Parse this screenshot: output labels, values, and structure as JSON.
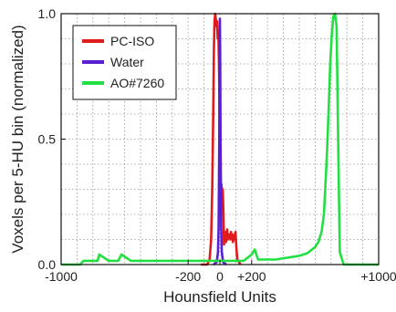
{
  "chart_data": {
    "type": "line",
    "xlabel": "Hounsfield Units",
    "ylabel": "Voxels per 5-HU bin (normalized)",
    "xlim": [
      -1000,
      1000
    ],
    "ylim": [
      0,
      1.0
    ],
    "grid": true,
    "legend_position": "top-left",
    "x_ticks": [
      {
        "value": -1000,
        "label": "-1000"
      },
      {
        "value": -200,
        "label": "-200"
      },
      {
        "value": 0,
        "label": "0"
      },
      {
        "value": 200,
        "label": "+200"
      },
      {
        "value": 1000,
        "label": "+1000"
      }
    ],
    "y_ticks": [
      {
        "value": 0,
        "label": "0.0"
      },
      {
        "value": 0.5,
        "label": "0.5"
      },
      {
        "value": 1.0,
        "label": "1.0"
      }
    ],
    "series": [
      {
        "name": "PC-ISO",
        "color": "#e01b1b",
        "x": [
          -120,
          -80,
          -65,
          -55,
          -48,
          -42,
          -38,
          -34,
          -30,
          -26,
          -22,
          -18,
          -14,
          -10,
          -6,
          -2,
          2,
          6,
          10,
          14,
          18,
          22,
          26,
          30,
          34,
          38,
          42,
          46,
          50,
          54,
          58,
          62,
          66,
          70,
          74,
          78,
          82,
          86,
          90,
          94,
          98,
          102,
          106,
          110,
          120,
          130
        ],
        "y": [
          0.0,
          0.0,
          0.02,
          0.1,
          0.3,
          0.6,
          0.85,
          0.97,
          1.0,
          0.98,
          0.95,
          0.97,
          0.9,
          0.93,
          0.8,
          0.6,
          0.45,
          0.3,
          0.32,
          0.28,
          0.3,
          0.22,
          0.08,
          0.1,
          0.13,
          0.09,
          0.12,
          0.14,
          0.1,
          0.12,
          0.11,
          0.12,
          0.1,
          0.13,
          0.11,
          0.12,
          0.09,
          0.11,
          0.1,
          0.12,
          0.13,
          0.09,
          0.05,
          0.02,
          0.01,
          0.0
        ]
      },
      {
        "name": "Water",
        "color": "#5a1fd0",
        "x": [
          -40,
          -20,
          -12,
          -8,
          -4,
          -2,
          0,
          2,
          4,
          8,
          12,
          20,
          40
        ],
        "y": [
          0.0,
          0.01,
          0.05,
          0.15,
          0.5,
          0.85,
          0.98,
          0.85,
          0.5,
          0.15,
          0.05,
          0.01,
          0.0
        ]
      },
      {
        "name": "AO#7260",
        "color": "#22e042",
        "x": [
          -1000,
          -880,
          -860,
          -800,
          -770,
          -760,
          -700,
          -640,
          -620,
          -560,
          -500,
          -300,
          -250,
          -200,
          -150,
          -100,
          -50,
          0,
          50,
          100,
          150,
          200,
          220,
          230,
          240,
          300,
          350,
          400,
          450,
          500,
          550,
          600,
          620,
          640,
          655,
          665,
          675,
          685,
          695,
          705,
          715,
          725,
          735,
          745,
          755,
          780,
          820,
          1000
        ],
        "y": [
          0.0,
          0.0,
          0.015,
          0.015,
          0.015,
          0.04,
          0.015,
          0.015,
          0.04,
          0.015,
          0.015,
          0.015,
          0.015,
          0.015,
          0.015,
          0.015,
          0.015,
          0.015,
          0.015,
          0.015,
          0.015,
          0.04,
          0.06,
          0.04,
          0.02,
          0.02,
          0.02,
          0.025,
          0.03,
          0.035,
          0.045,
          0.07,
          0.09,
          0.13,
          0.2,
          0.32,
          0.45,
          0.62,
          0.8,
          0.92,
          0.99,
          1.0,
          0.95,
          0.5,
          0.05,
          0.0,
          0.0,
          0.0
        ]
      }
    ]
  }
}
